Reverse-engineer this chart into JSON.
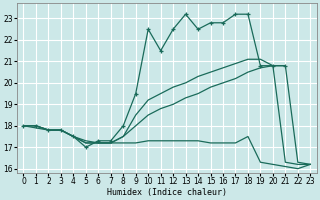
{
  "xlabel": "Humidex (Indice chaleur)",
  "xlim": [
    -0.5,
    23.5
  ],
  "ylim": [
    15.8,
    23.7
  ],
  "yticks": [
    16,
    17,
    18,
    19,
    20,
    21,
    22,
    23
  ],
  "xticks": [
    0,
    1,
    2,
    3,
    4,
    5,
    6,
    7,
    8,
    9,
    10,
    11,
    12,
    13,
    14,
    15,
    16,
    17,
    18,
    19,
    20,
    21,
    22,
    23
  ],
  "bg_color": "#cce8e8",
  "grid_color": "#ffffff",
  "line_color": "#1a6b5a",
  "line_marked": {
    "x": [
      0,
      1,
      2,
      3,
      4,
      5,
      6,
      7,
      8,
      9,
      10,
      11,
      12,
      13,
      14,
      15,
      16,
      17,
      18,
      19,
      20,
      21
    ],
    "y": [
      18.0,
      18.0,
      17.8,
      17.8,
      17.5,
      17.0,
      17.3,
      17.3,
      18.0,
      19.5,
      22.5,
      21.5,
      22.5,
      23.2,
      22.5,
      22.8,
      22.8,
      23.2,
      23.2,
      20.8,
      20.8,
      20.8
    ]
  },
  "line_upper": {
    "x": [
      0,
      1,
      2,
      3,
      4,
      5,
      6,
      7,
      8,
      9,
      10,
      11,
      12,
      13,
      14,
      15,
      16,
      17,
      18,
      19,
      20,
      21,
      22,
      23
    ],
    "y": [
      18.0,
      18.0,
      17.8,
      17.8,
      17.5,
      17.2,
      17.2,
      17.2,
      17.5,
      18.5,
      19.2,
      19.5,
      19.8,
      20.0,
      20.3,
      20.5,
      20.7,
      20.9,
      21.1,
      21.1,
      20.8,
      20.8,
      16.3,
      16.2
    ]
  },
  "line_mid": {
    "x": [
      0,
      1,
      2,
      3,
      4,
      5,
      6,
      7,
      8,
      9,
      10,
      11,
      12,
      13,
      14,
      15,
      16,
      17,
      18,
      19,
      20,
      21,
      22,
      23
    ],
    "y": [
      18.0,
      18.0,
      17.8,
      17.8,
      17.5,
      17.2,
      17.2,
      17.2,
      17.5,
      18.0,
      18.5,
      18.8,
      19.0,
      19.3,
      19.5,
      19.8,
      20.0,
      20.2,
      20.5,
      20.7,
      20.8,
      16.3,
      16.2,
      16.2
    ]
  },
  "line_lower": {
    "x": [
      0,
      1,
      2,
      3,
      4,
      5,
      6,
      7,
      8,
      9,
      10,
      11,
      12,
      13,
      14,
      15,
      16,
      17,
      18,
      19,
      20,
      21,
      22,
      23
    ],
    "y": [
      18.0,
      17.9,
      17.8,
      17.8,
      17.5,
      17.3,
      17.2,
      17.2,
      17.2,
      17.2,
      17.3,
      17.3,
      17.3,
      17.3,
      17.3,
      17.2,
      17.2,
      17.2,
      17.5,
      16.3,
      16.2,
      16.1,
      16.0,
      16.2
    ]
  }
}
